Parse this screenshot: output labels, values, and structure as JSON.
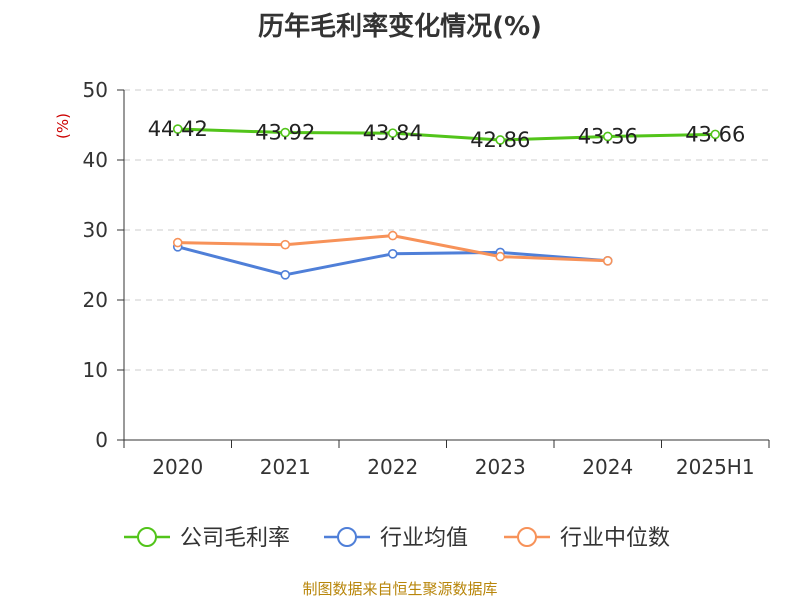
{
  "source": "制图数据来自恒生聚源数据库",
  "chart_data": {
    "type": "line",
    "title": "历年毛利率变化情况(%)",
    "ylabel": "(%)",
    "ylim": [
      0,
      50
    ],
    "yticks": [
      0,
      10,
      20,
      30,
      40,
      50
    ],
    "categories": [
      "2020",
      "2021",
      "2022",
      "2023",
      "2024",
      "2025H1"
    ],
    "grid": true,
    "legend_position": "bottom",
    "series": [
      {
        "name": "公司毛利率",
        "color": "#52c41a",
        "values": [
          44.42,
          43.92,
          43.84,
          42.86,
          43.36,
          43.66
        ],
        "show_labels": true
      },
      {
        "name": "行业均值",
        "color": "#4f7fd8",
        "values": [
          27.6,
          23.6,
          26.6,
          26.8,
          25.6,
          null
        ],
        "show_labels": false
      },
      {
        "name": "行业中位数",
        "color": "#f79259",
        "values": [
          28.2,
          27.9,
          29.2,
          26.2,
          25.6,
          null
        ],
        "show_labels": false
      }
    ],
    "ylabel_color": "#cc0000"
  }
}
